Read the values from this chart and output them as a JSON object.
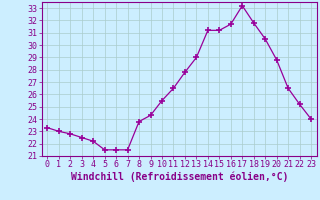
{
  "x": [
    0,
    1,
    2,
    3,
    4,
    5,
    6,
    7,
    8,
    9,
    10,
    11,
    12,
    13,
    14,
    15,
    16,
    17,
    18,
    19,
    20,
    21,
    22,
    23
  ],
  "y": [
    23.3,
    23.0,
    22.8,
    22.5,
    22.2,
    21.5,
    21.5,
    21.5,
    23.8,
    24.3,
    25.5,
    26.5,
    27.8,
    29.0,
    31.2,
    31.2,
    31.7,
    33.2,
    31.8,
    30.5,
    28.8,
    26.5,
    25.2,
    24.0
  ],
  "line_color": "#990099",
  "marker": "+",
  "marker_size": 4,
  "marker_linewidth": 1.2,
  "line_width": 0.9,
  "bg_color": "#cceeff",
  "grid_color": "#aacccc",
  "xlabel": "Windchill (Refroidissement éolien,°C)",
  "xlabel_fontsize": 7,
  "ylim": [
    21,
    33.5
  ],
  "xlim": [
    -0.5,
    23.5
  ],
  "yticks": [
    21,
    22,
    23,
    24,
    25,
    26,
    27,
    28,
    29,
    30,
    31,
    32,
    33
  ],
  "xticks": [
    0,
    1,
    2,
    3,
    4,
    5,
    6,
    7,
    8,
    9,
    10,
    11,
    12,
    13,
    14,
    15,
    16,
    17,
    18,
    19,
    20,
    21,
    22,
    23
  ],
  "tick_fontsize": 6,
  "axis_color": "#880088"
}
